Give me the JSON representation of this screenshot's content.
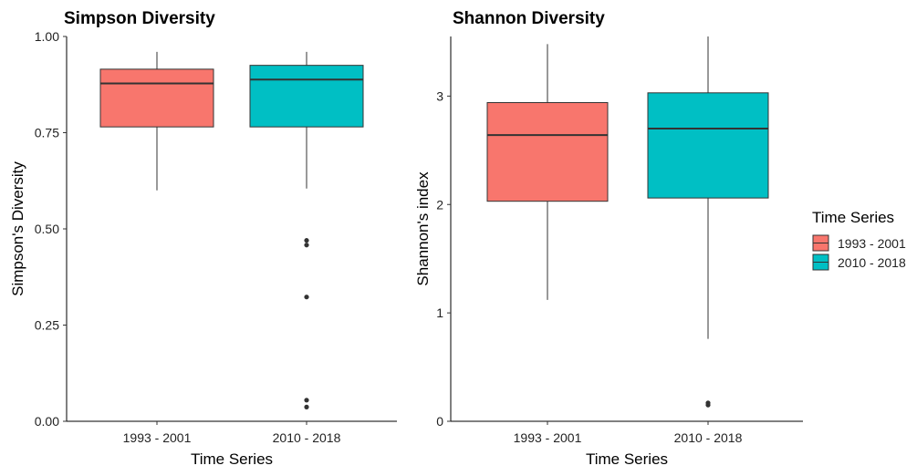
{
  "chart_data": [
    {
      "type": "box",
      "title": "Simpson Diversity",
      "xlabel": "Time Series",
      "ylabel": "Simpson's Diversity",
      "ylim": [
        0,
        1.0
      ],
      "yticks": [
        "0.00",
        "0.25",
        "0.50",
        "0.75",
        "1.00"
      ],
      "ytick_values": [
        0,
        0.25,
        0.5,
        0.75,
        1.0
      ],
      "categories": [
        "1993 - 2001",
        "2010 - 2018"
      ],
      "boxes": [
        {
          "category": "1993 - 2001",
          "color": "#F8766D",
          "whisker_low": 0.6,
          "q1": 0.765,
          "median": 0.878,
          "q3": 0.915,
          "whisker_high": 0.96,
          "outliers": []
        },
        {
          "category": "2010 - 2018",
          "color": "#00BFC4",
          "whisker_low": 0.605,
          "q1": 0.765,
          "median": 0.888,
          "q3": 0.925,
          "whisker_high": 0.96,
          "outliers": [
            0.47,
            0.458,
            0.323,
            0.055,
            0.037
          ]
        }
      ],
      "grid": false
    },
    {
      "type": "box",
      "title": "Shannon Diversity",
      "xlabel": "Time Series",
      "ylabel": "Shannon's index",
      "ylim": [
        0,
        3.55
      ],
      "yticks": [
        "0",
        "1",
        "2",
        "3"
      ],
      "ytick_values": [
        0,
        1,
        2,
        3
      ],
      "categories": [
        "1993 - 2001",
        "2010 - 2018"
      ],
      "boxes": [
        {
          "category": "1993 - 2001",
          "color": "#F8766D",
          "whisker_low": 1.12,
          "q1": 2.03,
          "median": 2.64,
          "q3": 2.94,
          "whisker_high": 3.48,
          "outliers": []
        },
        {
          "category": "2010 - 2018",
          "color": "#00BFC4",
          "whisker_low": 0.76,
          "q1": 2.06,
          "median": 2.7,
          "q3": 3.03,
          "whisker_high": 3.55,
          "outliers": [
            0.17,
            0.15
          ]
        }
      ],
      "grid": false
    }
  ],
  "legend": {
    "title": "Time Series",
    "placement": "right",
    "entries": [
      {
        "label": "1993 - 2001",
        "color": "#F8766D"
      },
      {
        "label": "2010 - 2018",
        "color": "#00BFC4"
      }
    ]
  }
}
